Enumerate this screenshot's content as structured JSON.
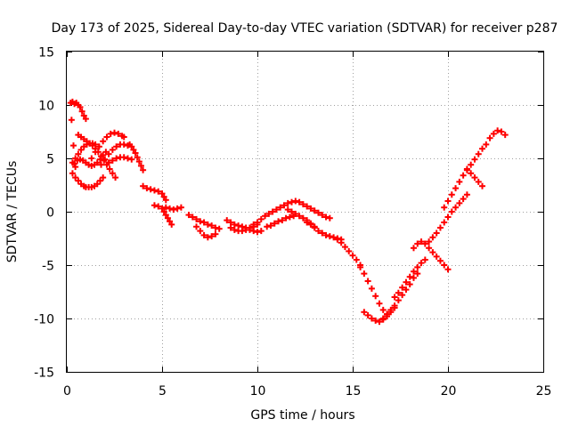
{
  "chart_data": {
    "type": "scatter",
    "title": "Day 173 of 2025, Sidereal Day-to-day VTEC variation (SDTVAR) for receiver p287",
    "xlabel": "GPS time / hours",
    "ylabel": "SDTVAR / TECUs",
    "xlim": [
      0,
      25
    ],
    "ylim": [
      -15,
      15
    ],
    "xticks": [
      0,
      5,
      10,
      15,
      20,
      25
    ],
    "yticks": [
      -15,
      -10,
      -5,
      0,
      5,
      10,
      15
    ],
    "grid": true,
    "marker": "plus",
    "color": "#ff0000",
    "series": [
      {
        "name": "SDTVAR",
        "x": [
          0.2,
          0.3,
          0.4,
          0.5,
          0.6,
          0.7,
          0.8,
          0.9,
          1.0,
          0.25,
          0.35,
          0.45,
          0.3,
          0.45,
          0.6,
          0.75,
          0.9,
          1.0,
          1.15,
          1.3,
          1.45,
          1.6,
          1.75,
          1.9,
          0.4,
          0.55,
          0.7,
          0.85,
          1.0,
          1.15,
          1.3,
          1.45,
          1.6,
          1.75,
          1.9,
          2.05,
          0.6,
          0.75,
          0.9,
          1.05,
          1.2,
          1.35,
          1.5,
          1.65,
          1.8,
          1.95,
          2.1,
          2.25,
          2.4,
          2.55,
          0.3,
          0.45,
          0.6,
          0.75,
          0.9,
          1.05,
          1.2,
          1.35,
          1.5,
          1.3,
          1.5,
          1.7,
          1.9,
          2.1,
          2.3,
          2.5,
          2.7,
          2.9,
          3.0,
          1.8,
          2.0,
          2.2,
          2.4,
          2.6,
          2.8,
          3.0,
          3.2,
          2.2,
          2.4,
          2.6,
          2.8,
          3.0,
          3.2,
          3.4,
          3.3,
          3.4,
          3.5,
          3.6,
          3.7,
          3.8,
          3.9,
          4.0,
          4.0,
          4.2,
          4.4,
          4.6,
          4.8,
          5.0,
          5.1,
          5.2,
          4.6,
          4.8,
          5.0,
          5.1,
          5.2,
          5.3,
          5.4,
          5.5,
          5.2,
          5.4,
          5.6,
          5.8,
          6.0,
          6.4,
          6.6,
          6.8,
          7.0,
          7.2,
          7.4,
          7.6,
          7.8,
          8.0,
          6.8,
          7.0,
          7.2,
          7.4,
          7.6,
          7.8,
          8.4,
          8.6,
          8.8,
          9.0,
          9.2,
          9.4,
          9.6,
          9.8,
          10.0,
          8.6,
          8.8,
          9.0,
          9.2,
          9.4,
          9.6,
          9.8,
          10.0,
          10.2,
          9.8,
          10.0,
          10.2,
          10.4,
          10.6,
          10.8,
          11.0,
          11.2,
          11.4,
          11.6,
          11.8,
          10.5,
          10.7,
          10.9,
          11.1,
          11.3,
          11.5,
          11.7,
          11.9,
          11.6,
          11.8,
          12.0,
          12.2,
          12.4,
          12.6,
          12.8,
          13.0,
          12.0,
          12.2,
          12.4,
          12.6,
          12.8,
          13.0,
          13.2,
          13.4,
          13.6,
          13.8,
          12.6,
          12.8,
          13.0,
          13.2,
          13.4,
          13.6,
          13.8,
          14.0,
          14.2,
          14.4,
          14.2,
          14.4,
          14.6,
          14.8,
          15.0,
          15.2,
          15.4,
          15.4,
          15.6,
          15.8,
          16.0,
          16.2,
          16.4,
          16.6,
          16.8,
          15.6,
          15.8,
          16.0,
          16.2,
          16.4,
          16.6,
          16.8,
          17.0,
          17.2,
          16.4,
          16.6,
          16.8,
          17.0,
          17.2,
          17.4,
          17.6,
          17.8,
          18.0,
          18.2,
          18.4,
          17.2,
          17.4,
          17.6,
          17.8,
          18.0,
          18.2,
          18.4,
          18.6,
          18.8,
          18.2,
          18.4,
          18.6,
          18.8,
          19.0,
          19.2,
          19.4,
          19.6,
          19.8,
          20.0,
          19.0,
          19.2,
          19.4,
          19.6,
          19.8,
          20.0,
          20.2,
          20.4,
          20.6,
          20.8,
          21.0,
          19.8,
          20.0,
          20.2,
          20.4,
          20.6,
          20.8,
          21.0,
          21.2,
          21.4,
          21.6,
          21.8,
          22.0,
          21.0,
          21.2,
          21.4,
          21.6,
          21.8,
          22.2,
          22.4,
          22.6,
          22.8,
          23.0
        ],
        "y": [
          10.2,
          10.3,
          10.1,
          10.2,
          10.0,
          9.8,
          9.4,
          9.0,
          8.7,
          8.6,
          6.2,
          4.2,
          3.6,
          3.2,
          2.9,
          2.6,
          2.4,
          2.3,
          2.3,
          2.3,
          2.4,
          2.6,
          2.9,
          3.2,
          4.5,
          4.8,
          4.9,
          4.8,
          4.6,
          4.4,
          4.3,
          4.4,
          4.6,
          4.9,
          5.3,
          5.6,
          7.2,
          7.0,
          6.8,
          6.6,
          6.4,
          6.2,
          5.9,
          5.6,
          5.2,
          4.8,
          4.4,
          4.0,
          3.6,
          3.2,
          4.6,
          5.0,
          5.4,
          5.8,
          6.1,
          6.3,
          6.4,
          6.4,
          6.3,
          5.0,
          5.6,
          6.1,
          6.6,
          7.0,
          7.3,
          7.4,
          7.3,
          7.1,
          7.0,
          4.4,
          4.9,
          5.4,
          5.8,
          6.1,
          6.3,
          6.3,
          6.2,
          4.6,
          4.8,
          5.0,
          5.1,
          5.1,
          5.0,
          4.9,
          6.3,
          6.1,
          5.8,
          5.5,
          5.1,
          4.7,
          4.3,
          3.9,
          2.4,
          2.2,
          2.1,
          2.0,
          1.9,
          1.7,
          1.4,
          1.1,
          0.6,
          0.5,
          0.3,
          0.0,
          -0.3,
          -0.6,
          -0.9,
          -1.2,
          0.4,
          0.3,
          0.2,
          0.3,
          0.4,
          -0.3,
          -0.5,
          -0.7,
          -0.9,
          -1.0,
          -1.2,
          -1.3,
          -1.5,
          -1.6,
          -1.4,
          -1.8,
          -2.2,
          -2.4,
          -2.3,
          -2.1,
          -0.8,
          -1.0,
          -1.2,
          -1.3,
          -1.4,
          -1.5,
          -1.5,
          -1.4,
          -1.2,
          -1.5,
          -1.7,
          -1.8,
          -1.8,
          -1.7,
          -1.7,
          -1.8,
          -1.9,
          -1.8,
          -1.2,
          -1.0,
          -0.7,
          -0.4,
          -0.2,
          0.0,
          0.2,
          0.4,
          0.6,
          0.8,
          0.9,
          -1.4,
          -1.3,
          -1.1,
          -0.9,
          -0.8,
          -0.6,
          -0.5,
          -0.4,
          0.2,
          0.0,
          -0.2,
          -0.4,
          -0.6,
          -0.8,
          -1.1,
          -1.4,
          1.0,
          0.9,
          0.7,
          0.5,
          0.3,
          0.1,
          -0.1,
          -0.3,
          -0.5,
          -0.6,
          -1.0,
          -1.2,
          -1.5,
          -1.8,
          -2.0,
          -2.2,
          -2.3,
          -2.4,
          -2.5,
          -2.6,
          -2.6,
          -2.9,
          -3.3,
          -3.7,
          -4.1,
          -4.5,
          -5.0,
          -5.2,
          -5.8,
          -6.5,
          -7.2,
          -7.9,
          -8.6,
          -9.2,
          -9.6,
          -9.4,
          -9.7,
          -10.0,
          -10.2,
          -10.3,
          -10.1,
          -9.8,
          -9.4,
          -9.0,
          -10.3,
          -10.0,
          -9.6,
          -9.2,
          -8.8,
          -8.3,
          -7.8,
          -7.3,
          -6.8,
          -6.2,
          -5.8,
          -8.0,
          -7.6,
          -7.1,
          -6.6,
          -6.1,
          -5.6,
          -5.2,
          -4.8,
          -4.5,
          -3.4,
          -3.0,
          -2.8,
          -3.0,
          -3.4,
          -3.8,
          -4.2,
          -4.6,
          -5.0,
          -5.4,
          -2.8,
          -2.4,
          -2.0,
          -1.5,
          -1.0,
          -0.5,
          0.0,
          0.4,
          0.8,
          1.2,
          1.6,
          0.4,
          1.0,
          1.6,
          2.2,
          2.8,
          3.4,
          3.9,
          4.4,
          4.9,
          5.4,
          5.9,
          6.3,
          4.0,
          3.6,
          3.2,
          2.8,
          2.4,
          6.9,
          7.3,
          7.6,
          7.5,
          7.2
        ]
      }
    ]
  }
}
